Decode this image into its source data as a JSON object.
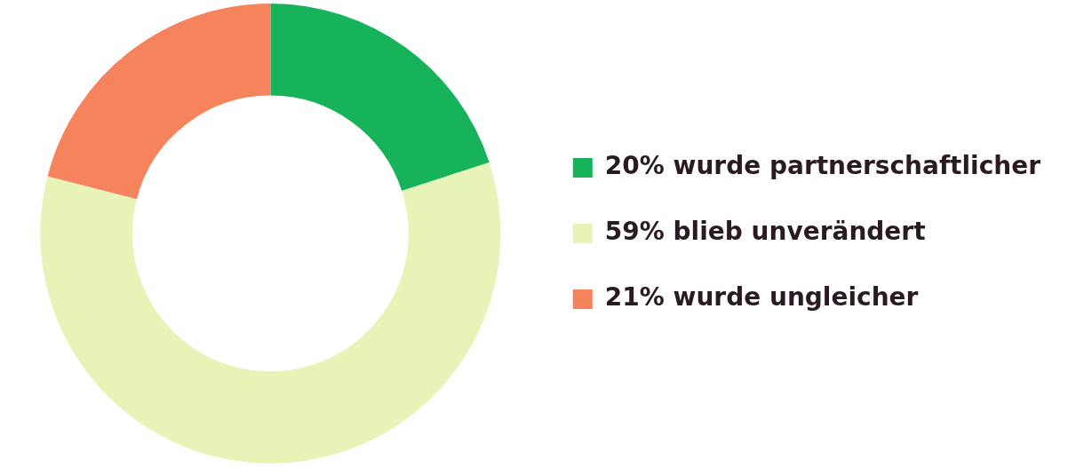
{
  "chart_data": {
    "type": "donut",
    "categories": [
      "wurde partnerschaftlicher",
      "blieb unverändert",
      "wurde ungleicher"
    ],
    "values": [
      20,
      59,
      21
    ],
    "value_labels": [
      "20%",
      "59%",
      "21%"
    ],
    "colors": [
      "#16b35a",
      "#e8f3b8",
      "#f5845c"
    ],
    "legend": "right"
  }
}
